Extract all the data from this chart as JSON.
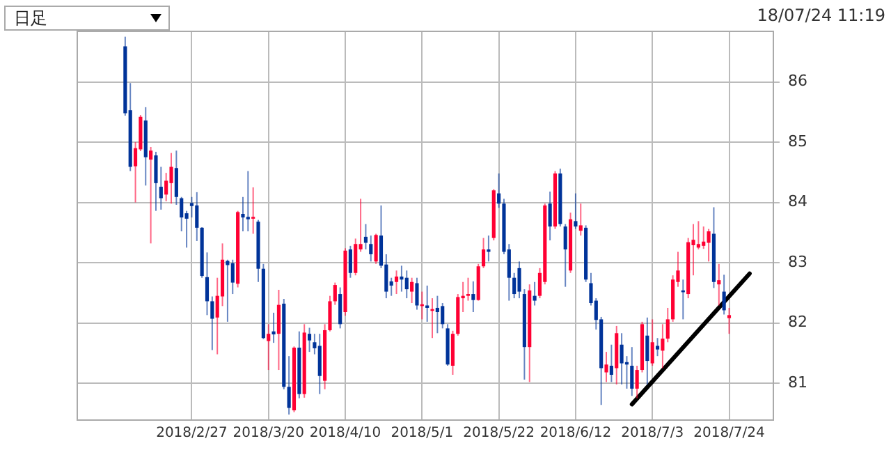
{
  "chart_data": {
    "type": "candlestick",
    "categories": [
      null,
      null,
      null,
      null,
      null,
      null,
      null,
      null,
      null,
      null,
      null,
      null,
      null,
      null,
      null,
      null,
      null,
      null,
      null,
      null,
      null,
      null,
      "2018/2/27",
      null,
      null,
      null,
      null,
      null,
      null,
      null,
      null,
      null,
      null,
      null,
      null,
      null,
      null,
      "2018/3/20",
      null,
      null,
      null,
      null,
      null,
      null,
      null,
      null,
      null,
      null,
      null,
      null,
      null,
      null,
      "2018/4/10",
      null,
      null,
      null,
      null,
      null,
      null,
      null,
      null,
      null,
      null,
      null,
      null,
      null,
      null,
      "2018/5/1",
      null,
      null,
      null,
      null,
      null,
      null,
      null,
      null,
      null,
      null,
      null,
      null,
      null,
      null,
      "2018/5/22",
      null,
      null,
      null,
      null,
      null,
      null,
      null,
      null,
      null,
      null,
      null,
      null,
      null,
      null,
      "2018/6/12",
      null,
      null,
      null,
      null,
      null,
      null,
      null,
      null,
      null,
      null,
      null,
      null,
      null,
      null,
      "2018/7/3",
      null,
      null,
      null,
      null,
      null,
      null,
      null,
      null,
      null,
      null,
      null,
      null,
      null,
      null,
      "2018/7/24",
      null,
      null,
      null,
      null,
      null,
      null,
      null,
      null
    ],
    "ohlc": [
      null,
      null,
      null,
      null,
      null,
      null,
      null,
      null,
      null,
      [
        86.59,
        86.75,
        85.44,
        85.48
      ],
      [
        85.53,
        85.98,
        84.52,
        84.59
      ],
      [
        84.6,
        85.0,
        84.0,
        84.9
      ],
      [
        84.88,
        85.45,
        84.85,
        85.42
      ],
      [
        85.36,
        85.58,
        84.28,
        84.75
      ],
      [
        84.71,
        84.92,
        83.32,
        84.86
      ],
      [
        84.78,
        84.84,
        83.86,
        84.32
      ],
      [
        84.26,
        84.59,
        83.88,
        84.07
      ],
      [
        84.13,
        84.49,
        84.02,
        84.36
      ],
      [
        84.32,
        84.82,
        83.98,
        84.59
      ],
      [
        84.57,
        84.86,
        83.96,
        84.09
      ],
      [
        84.07,
        84.09,
        83.52,
        83.75
      ],
      [
        83.82,
        83.86,
        83.25,
        83.73
      ],
      [
        83.99,
        84.09,
        83.75,
        83.94
      ],
      [
        83.95,
        84.17,
        83.36,
        83.58
      ],
      [
        83.58,
        83.59,
        82.75,
        82.78
      ],
      [
        82.76,
        83.17,
        82.13,
        82.36
      ],
      [
        82.36,
        82.44,
        81.55,
        82.07
      ],
      [
        82.09,
        82.75,
        81.48,
        82.45
      ],
      [
        82.44,
        83.32,
        82.28,
        83.05
      ],
      [
        83.03,
        83.05,
        82.02,
        82.96
      ],
      [
        82.99,
        83.05,
        82.48,
        82.67
      ],
      [
        82.65,
        83.86,
        82.59,
        83.84
      ],
      [
        83.81,
        84.09,
        83.52,
        83.75
      ],
      [
        83.76,
        84.52,
        83.52,
        83.72
      ],
      [
        83.73,
        84.25,
        83.48,
        83.76
      ],
      [
        83.68,
        83.71,
        82.68,
        82.9
      ],
      [
        82.9,
        82.98,
        81.73,
        81.75
      ],
      [
        81.7,
        81.98,
        81.22,
        81.82
      ],
      [
        81.86,
        82.17,
        81.67,
        81.81
      ],
      [
        81.82,
        82.55,
        81.22,
        82.3
      ],
      [
        82.32,
        82.4,
        80.9,
        80.94
      ],
      [
        80.94,
        81.45,
        80.48,
        80.59
      ],
      [
        80.55,
        81.61,
        80.52,
        81.59
      ],
      [
        81.59,
        81.86,
        80.75,
        80.82
      ],
      [
        80.82,
        81.98,
        80.76,
        81.84
      ],
      [
        81.82,
        81.92,
        81.52,
        81.71
      ],
      [
        81.68,
        81.82,
        81.48,
        81.58
      ],
      [
        81.62,
        81.82,
        80.82,
        81.12
      ],
      [
        81.04,
        81.98,
        80.9,
        81.88
      ],
      [
        81.88,
        82.45,
        81.86,
        82.36
      ],
      [
        82.36,
        82.67,
        82.3,
        82.63
      ],
      [
        82.48,
        82.59,
        81.91,
        81.98
      ],
      [
        82.18,
        83.24,
        82.12,
        83.2
      ],
      [
        83.22,
        83.28,
        82.75,
        82.83
      ],
      [
        82.83,
        83.4,
        82.79,
        83.31
      ],
      [
        83.22,
        84.06,
        83.18,
        83.31
      ],
      [
        83.43,
        83.64,
        83.22,
        83.33
      ],
      [
        83.31,
        83.45,
        83.02,
        83.14
      ],
      [
        83.02,
        83.48,
        82.98,
        83.46
      ],
      [
        83.45,
        83.95,
        82.91,
        82.95
      ],
      [
        82.97,
        83.14,
        82.41,
        82.52
      ],
      [
        82.69,
        82.75,
        82.45,
        82.62
      ],
      [
        82.68,
        82.87,
        82.48,
        82.77
      ],
      [
        82.77,
        82.95,
        82.52,
        82.72
      ],
      [
        82.75,
        82.87,
        82.41,
        82.56
      ],
      [
        82.52,
        82.75,
        82.33,
        82.68
      ],
      [
        82.66,
        82.75,
        82.22,
        82.29
      ],
      [
        82.28,
        82.52,
        82.06,
        82.31
      ],
      [
        82.29,
        82.62,
        82.02,
        82.25
      ],
      [
        82.2,
        82.41,
        81.75,
        82.23
      ],
      [
        82.25,
        82.45,
        81.83,
        82.18
      ],
      [
        82.28,
        82.33,
        81.91,
        81.98
      ],
      [
        81.91,
        81.98,
        81.29,
        81.31
      ],
      [
        81.29,
        81.87,
        81.14,
        81.82
      ],
      [
        81.82,
        82.48,
        81.79,
        82.43
      ],
      [
        82.41,
        82.68,
        82.18,
        82.45
      ],
      [
        82.45,
        82.75,
        82.37,
        82.48
      ],
      [
        82.48,
        82.69,
        82.18,
        82.38
      ],
      [
        82.38,
        82.98,
        82.37,
        82.94
      ],
      [
        82.94,
        83.41,
        82.91,
        83.22
      ],
      [
        83.22,
        83.45,
        83.02,
        83.18
      ],
      [
        83.41,
        84.22,
        83.37,
        84.2
      ],
      [
        84.15,
        84.48,
        83.91,
        83.98
      ],
      [
        83.98,
        84.06,
        83.14,
        83.18
      ],
      [
        83.22,
        83.31,
        82.37,
        82.75
      ],
      [
        82.75,
        82.83,
        82.41,
        82.48
      ],
      [
        82.91,
        83.02,
        82.41,
        82.52
      ],
      [
        82.48,
        82.56,
        81.06,
        81.6
      ],
      [
        81.6,
        82.64,
        81.02,
        82.54
      ],
      [
        82.45,
        82.68,
        82.29,
        82.37
      ],
      [
        82.45,
        82.91,
        82.41,
        82.83
      ],
      [
        82.68,
        83.98,
        82.64,
        83.95
      ],
      [
        83.98,
        84.18,
        83.37,
        83.6
      ],
      [
        83.6,
        84.52,
        83.56,
        84.48
      ],
      [
        84.48,
        84.56,
        83.6,
        83.64
      ],
      [
        83.6,
        83.64,
        82.6,
        83.22
      ],
      [
        82.87,
        83.83,
        82.83,
        83.72
      ],
      [
        83.69,
        84.15,
        83.56,
        83.6
      ],
      [
        83.53,
        83.98,
        83.45,
        83.62
      ],
      [
        83.58,
        83.62,
        82.68,
        82.72
      ],
      [
        82.66,
        82.83,
        82.29,
        82.33
      ],
      [
        82.37,
        82.41,
        81.89,
        82.05
      ],
      [
        82.06,
        82.1,
        80.64,
        81.25
      ],
      [
        81.18,
        81.52,
        81.02,
        81.31
      ],
      [
        81.29,
        81.64,
        81.02,
        81.14
      ],
      [
        81.25,
        81.95,
        80.98,
        81.83
      ],
      [
        81.64,
        81.83,
        80.98,
        81.33
      ],
      [
        81.35,
        81.45,
        80.91,
        81.31
      ],
      [
        81.29,
        81.6,
        80.79,
        80.91
      ],
      [
        80.91,
        81.29,
        80.75,
        81.22
      ],
      [
        81.22,
        82.02,
        81.18,
        81.98
      ],
      [
        81.79,
        82.09,
        80.98,
        81.37
      ],
      [
        81.33,
        82.06,
        81.29,
        81.68
      ],
      [
        81.62,
        81.75,
        81.45,
        81.56
      ],
      [
        81.54,
        81.98,
        81.25,
        81.74
      ],
      [
        81.74,
        82.25,
        81.68,
        82.06
      ],
      [
        82.06,
        82.79,
        82.02,
        82.72
      ],
      [
        82.68,
        83.18,
        82.6,
        82.87
      ],
      [
        82.54,
        82.72,
        82.06,
        82.51
      ],
      [
        82.48,
        83.41,
        82.41,
        83.34
      ],
      [
        83.29,
        83.64,
        82.79,
        83.38
      ],
      [
        83.25,
        83.69,
        83.22,
        83.31
      ],
      [
        83.28,
        83.6,
        83.23,
        83.35
      ],
      [
        83.33,
        83.56,
        83.02,
        83.52
      ],
      [
        83.48,
        83.92,
        82.58,
        82.68
      ],
      [
        82.64,
        82.98,
        82.29,
        82.71
      ],
      [
        82.52,
        82.8,
        82.14,
        82.21
      ],
      [
        82.08,
        82.25,
        81.82,
        82.13
      ],
      null,
      null,
      null,
      null,
      null,
      null,
      null,
      null
    ],
    "colors": [
      null,
      null,
      null,
      null,
      null,
      null,
      null,
      null,
      null,
      "#003399",
      "#003399",
      "#ff0033",
      "#ff0033",
      "#003399",
      "#ff0033",
      "#003399",
      "#003399",
      "#ff0033",
      "#ff0033",
      "#003399",
      "#003399",
      "#003399",
      "#003399",
      "#003399",
      "#003399",
      "#003399",
      "#003399",
      "#ff0033",
      "#ff0033",
      "#003399",
      "#003399",
      "#ff0033",
      "#003399",
      "#003399",
      "#ff0033",
      "#003399",
      "#003399",
      "#ff0033",
      "#003399",
      "#ff0033",
      "#003399",
      "#003399",
      "#ff0033",
      "#003399",
      "#ff0033",
      "#003399",
      "#003399",
      "#003399",
      "#ff0033",
      "#ff0033",
      "#ff0033",
      "#003399",
      "#ff0033",
      "#003399",
      "#ff0033",
      "#ff0033",
      "#003399",
      "#003399",
      "#ff0033",
      "#003399",
      "#003399",
      "#003399",
      "#ff0033",
      "#003399",
      "#003399",
      "#ff0033",
      "#003399",
      "#ff0033",
      "#003399",
      "#ff0033",
      "#003399",
      "#003399",
      "#003399",
      "#ff0033",
      "#ff0033",
      "#ff0033",
      "#ff0033",
      "#003399",
      "#ff0033",
      "#ff0033",
      "#003399",
      "#ff0033",
      "#003399",
      "#003399",
      "#003399",
      "#003399",
      "#003399",
      "#003399",
      "#ff0033",
      "#003399",
      "#ff0033",
      "#ff0033",
      "#003399",
      "#ff0033",
      "#003399",
      "#003399",
      "#ff0033",
      "#003399",
      "#ff0033",
      "#003399",
      "#003399",
      "#003399",
      "#003399",
      "#ff0033",
      "#003399",
      "#ff0033",
      "#003399",
      "#003399",
      "#003399",
      "#ff0033",
      "#ff0033",
      "#003399",
      "#ff0033",
      "#003399",
      "#ff0033",
      "#ff0033",
      "#ff0033",
      "#ff0033",
      "#003399",
      "#ff0033",
      "#ff0033",
      "#ff0033",
      "#ff0033",
      "#ff0033",
      "#003399",
      "#ff0033",
      "#003399",
      "#ff0033",
      null,
      null,
      null,
      null,
      null,
      null,
      null,
      null
    ],
    "series": [
      {
        "type": "line",
        "color": "#000000",
        "values": [
          null,
          null,
          null,
          null,
          null,
          null,
          null,
          null,
          null,
          null,
          null,
          null,
          null,
          null,
          null,
          null,
          null,
          null,
          null,
          null,
          null,
          null,
          null,
          null,
          null,
          null,
          null,
          null,
          null,
          null,
          null,
          null,
          null,
          null,
          null,
          null,
          null,
          null,
          null,
          null,
          null,
          null,
          null,
          null,
          null,
          null,
          null,
          null,
          null,
          null,
          null,
          null,
          null,
          null,
          null,
          null,
          null,
          null,
          null,
          null,
          null,
          null,
          null,
          null,
          null,
          null,
          null,
          null,
          null,
          null,
          null,
          null,
          null,
          null,
          null,
          null,
          null,
          null,
          null,
          null,
          null,
          null,
          null,
          null,
          null,
          null,
          null,
          null,
          null,
          null,
          null,
          null,
          null,
          null,
          null,
          null,
          null,
          null,
          null,
          null,
          null,
          null,
          null,
          null,
          null,
          null,
          null,
          null,
          80.65,
          null,
          null,
          null,
          null,
          null,
          null,
          null,
          null,
          null,
          null,
          null,
          null,
          null,
          null,
          null,
          null,
          null,
          null,
          null,
          null,
          null,
          null,
          82.82,
          null,
          null,
          null,
          null
        ]
      }
    ],
    "ylim": [
      80.4,
      86.85
    ],
    "yticks": [
      81,
      82,
      83,
      84,
      85,
      86
    ],
    "grid": true,
    "annotations": [
      "日足",
      "18/07/24 11:19"
    ]
  }
}
